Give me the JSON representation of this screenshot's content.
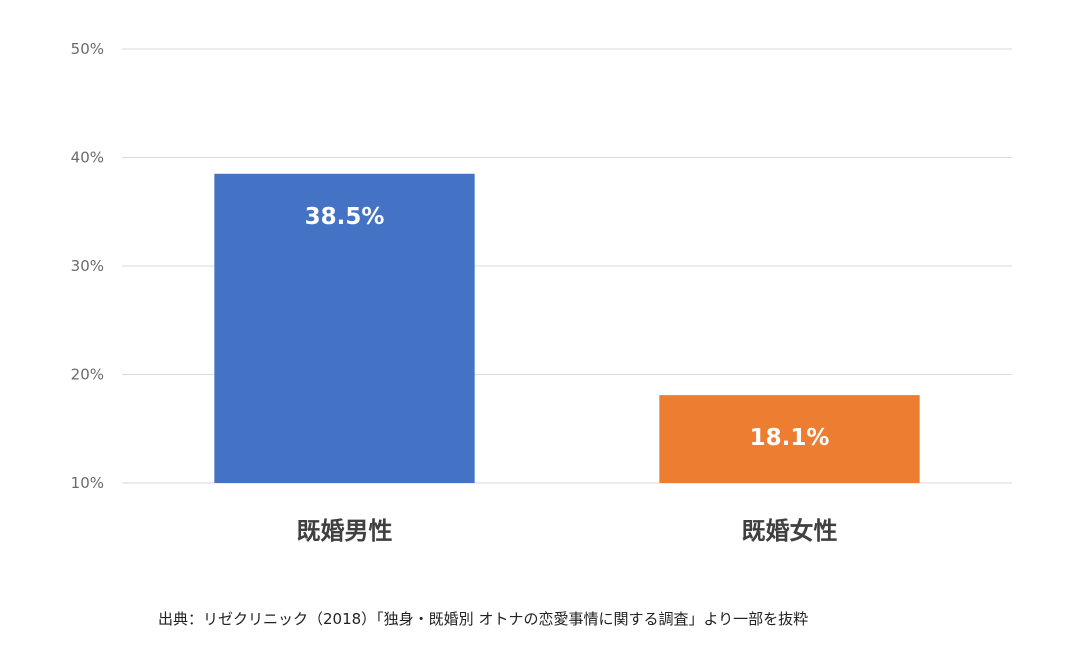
{
  "chart_data": {
    "type": "bar",
    "categories": [
      "既婚男性",
      "既婚女性"
    ],
    "values": [
      38.5,
      18.1
    ],
    "data_labels": [
      "38.5%",
      "18.1%"
    ],
    "colors": [
      "#4472c4",
      "#ed7d31"
    ],
    "ylim": [
      10,
      50
    ],
    "yticks": [
      10,
      20,
      30,
      40,
      50
    ],
    "ytick_labels": [
      "10%",
      "20%",
      "30%",
      "40%",
      "50%"
    ],
    "grid": true,
    "legend": "none",
    "title": "",
    "xlabel": "",
    "ylabel": ""
  },
  "source_note": "出典：リゼクリニック（2018）「独身・既婚別 オトナの恋愛事情に関する調査」より一部を抜粋"
}
